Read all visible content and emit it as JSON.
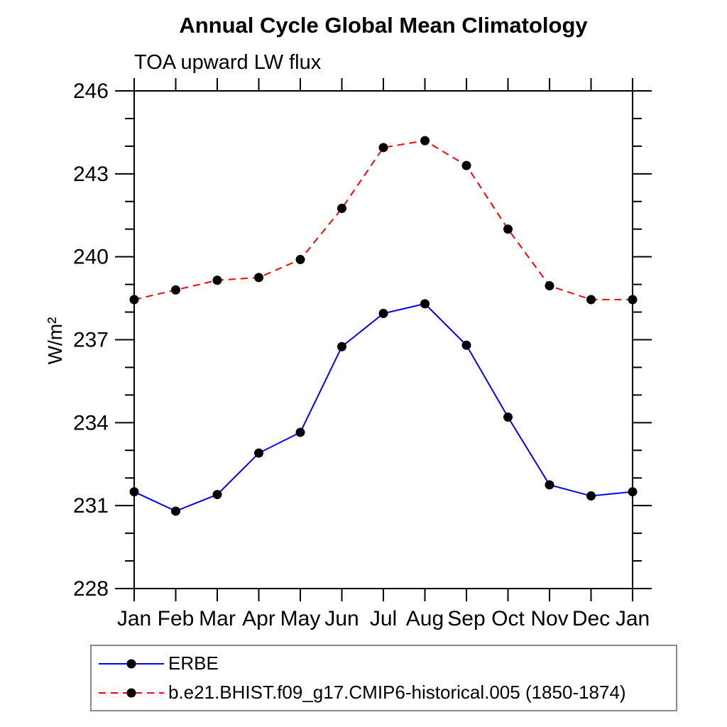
{
  "title": "Annual Cycle Global Mean Climatology",
  "subtitle": "TOA upward LW flux",
  "ylabel": "W/m²",
  "legend": {
    "entries": [
      {
        "label": "ERBE",
        "color": "#0000ff",
        "style": "solid",
        "marker_color": "#000000"
      },
      {
        "label": "b.e21.BHIST.f09_g17.CMIP6-historical.005 (1850-1874)",
        "color": "#ff0000",
        "style": "dashed",
        "marker_color": "#000000"
      }
    ]
  },
  "chart_data": {
    "type": "line",
    "title": "Annual Cycle Global Mean Climatology",
    "subtitle": "TOA upward LW flux",
    "xlabel": "",
    "ylabel": "W/m²",
    "categories": [
      "Jan",
      "Feb",
      "Mar",
      "Apr",
      "May",
      "Jun",
      "Jul",
      "Aug",
      "Sep",
      "Oct",
      "Nov",
      "Dec",
      "Jan"
    ],
    "ylim": [
      228,
      246
    ],
    "ytick_major_step": 3,
    "ytick_minor_step": 1,
    "ytick_major_labels": [
      228,
      231,
      234,
      237,
      240,
      243,
      246
    ],
    "grid": false,
    "legend_position": "bottom-left",
    "axis_color": "#000000",
    "marker": "filled-circle",
    "marker_color": "#000000",
    "series": [
      {
        "name": "ERBE",
        "color": "#0000ff",
        "line_style": "solid",
        "values": [
          231.5,
          230.8,
          231.4,
          232.9,
          233.65,
          236.75,
          237.95,
          238.3,
          236.8,
          234.2,
          231.75,
          231.35,
          231.5
        ]
      },
      {
        "name": "b.e21.BHIST.f09_g17.CMIP6-historical.005 (1850-1874)",
        "color": "#ff0000",
        "line_style": "dashed",
        "values": [
          238.45,
          238.8,
          239.15,
          239.25,
          239.9,
          241.75,
          243.95,
          244.2,
          243.3,
          241.0,
          238.95,
          238.45,
          238.45
        ]
      }
    ]
  }
}
